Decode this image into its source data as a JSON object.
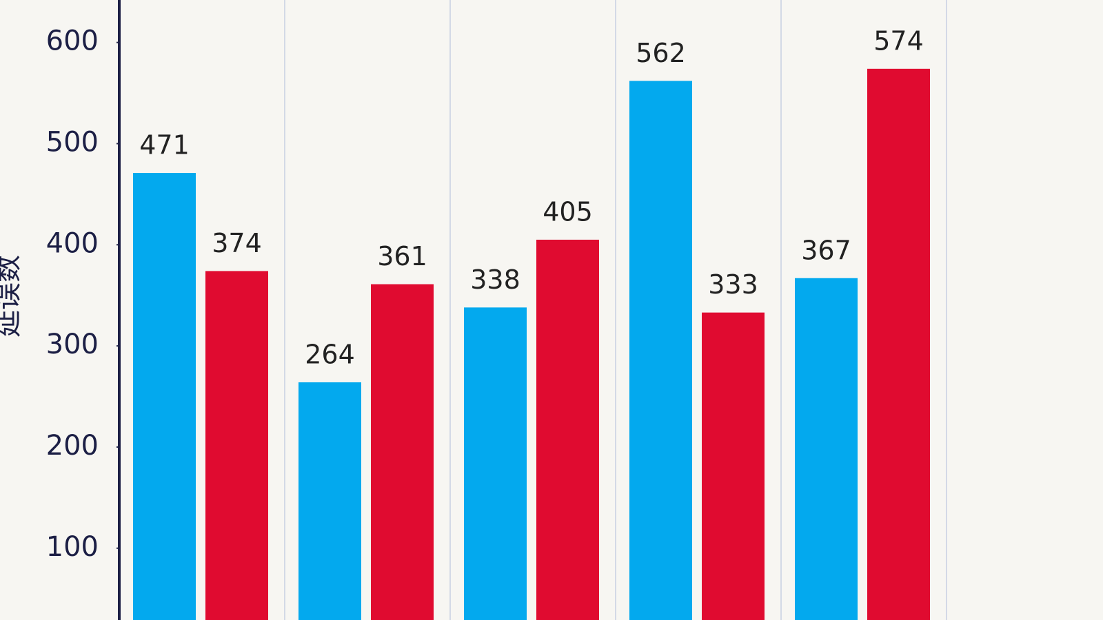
{
  "chart_data": {
    "type": "bar",
    "y_label": "延误数",
    "categories": [
      null,
      null,
      null,
      null,
      null
    ],
    "series": [
      {
        "color": "#03a9ee",
        "values": [
          471,
          264,
          338,
          562,
          367
        ]
      },
      {
        "color": "#e00b30",
        "values": [
          374,
          361,
          405,
          333,
          574
        ]
      }
    ],
    "ylim": [
      29,
      642
    ],
    "yticks": [
      100,
      200,
      300,
      400,
      500,
      600
    ],
    "grid": true
  }
}
